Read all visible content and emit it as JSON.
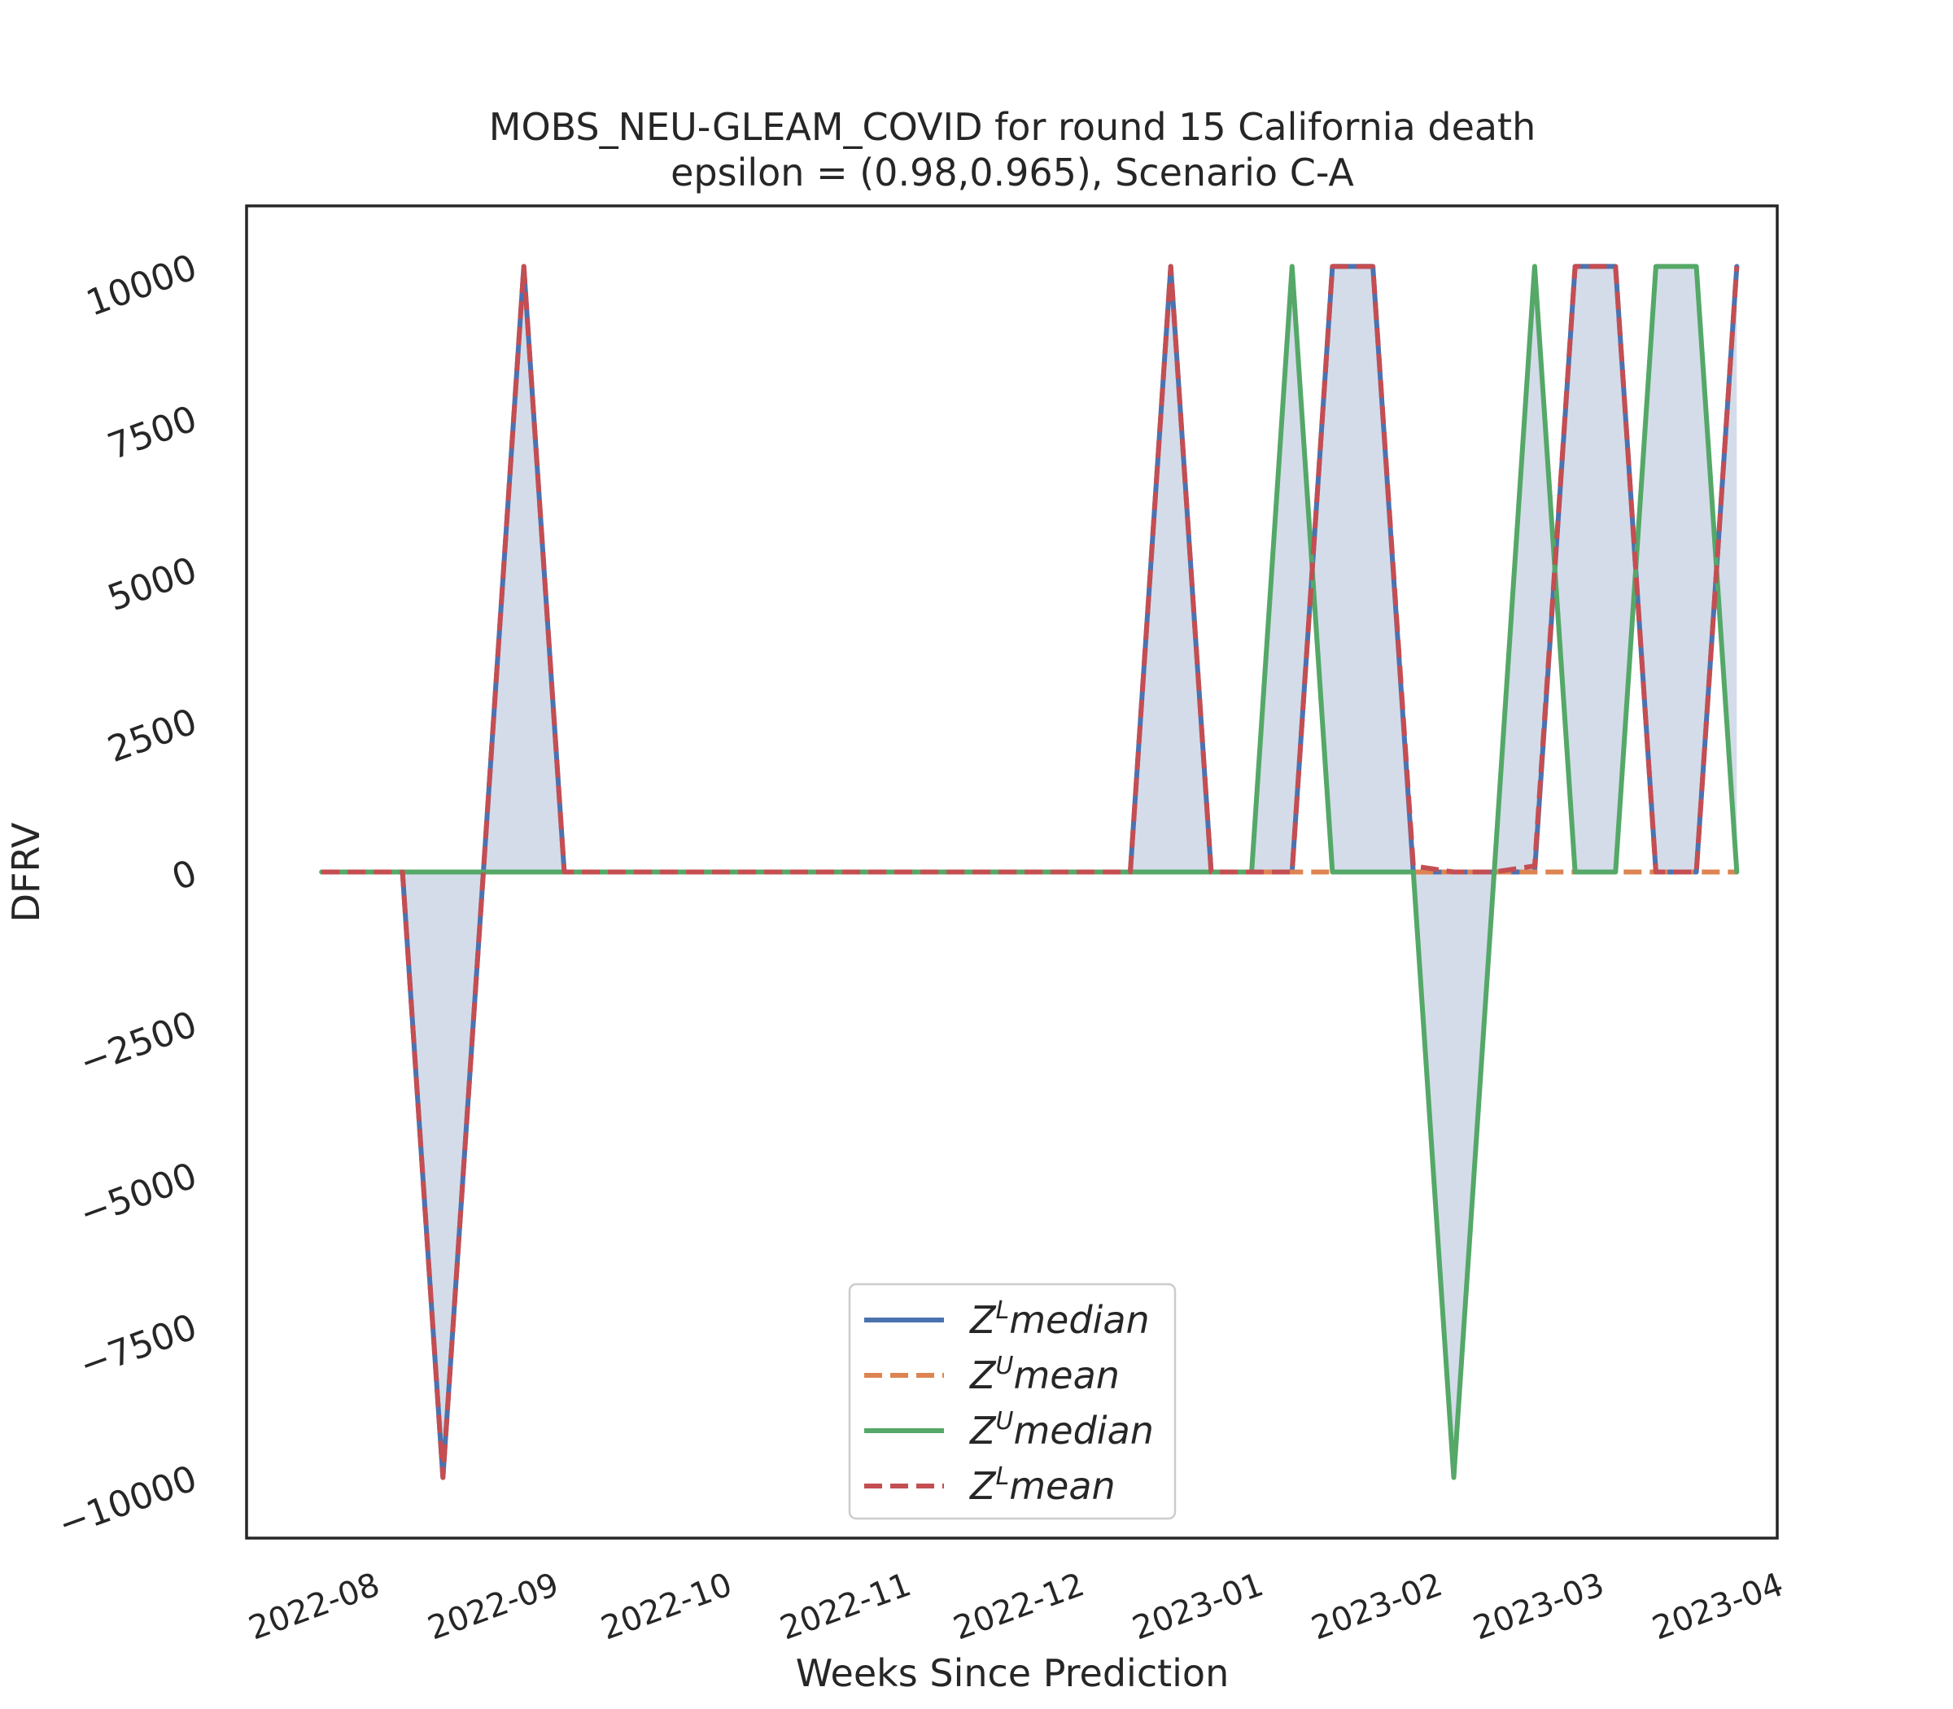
{
  "chart_data": {
    "type": "line",
    "title": "MOBS_NEU-GLEAM_COVID for round 15 California  death",
    "subtitle": "epsilon = (0.98,0.965), Scenario C-A",
    "xlabel": "Weeks Since Prediction",
    "ylabel": "DFRV",
    "ylim": [
      -11000,
      11000
    ],
    "xlim": [
      "2022-07-10",
      "2023-04-01"
    ],
    "x_ticks": [
      "2022-08",
      "2022-09",
      "2022-10",
      "2022-11",
      "2022-12",
      "2023-01",
      "2023-02",
      "2023-03",
      "2023-04"
    ],
    "x_tick_dates": [
      "2022-08-01",
      "2022-09-01",
      "2022-10-01",
      "2022-11-01",
      "2022-12-01",
      "2023-01-01",
      "2023-02-01",
      "2023-03-01",
      "2023-04-01"
    ],
    "y_ticks": [
      -10000,
      -7500,
      -5000,
      -2500,
      0,
      2500,
      5000,
      7500,
      10000
    ],
    "y_tick_labels": [
      "−10000",
      "−7500",
      "−5000",
      "−2500",
      "0",
      "2500",
      "5000",
      "7500",
      "10000"
    ],
    "grid": false,
    "legend_position": "lower-center",
    "fill_between": {
      "between": [
        "Z^L median",
        "Z^U median"
      ],
      "color": "#d4dcea"
    },
    "x": [
      "2022-07-23",
      "2022-07-30",
      "2022-08-06",
      "2022-08-13",
      "2022-08-20",
      "2022-08-27",
      "2022-09-03",
      "2022-09-10",
      "2022-09-17",
      "2022-09-24",
      "2022-10-01",
      "2022-10-08",
      "2022-10-15",
      "2022-10-22",
      "2022-10-29",
      "2022-11-05",
      "2022-11-12",
      "2022-11-19",
      "2022-11-26",
      "2022-12-03",
      "2022-12-10",
      "2022-12-17",
      "2022-12-24",
      "2022-12-31",
      "2023-01-07",
      "2023-01-14",
      "2023-01-21",
      "2023-01-28",
      "2023-02-04",
      "2023-02-11",
      "2023-02-18",
      "2023-02-25",
      "2023-03-04",
      "2023-03-11",
      "2023-03-18",
      "2023-03-25"
    ],
    "series": [
      {
        "name": "Z^L median",
        "legend_base": "Z",
        "legend_sup": "L",
        "legend_rest": "median",
        "color": "#4c72b0",
        "style": "solid",
        "values": [
          0,
          0,
          0,
          -10000,
          0,
          10000,
          0,
          0,
          0,
          0,
          0,
          0,
          0,
          0,
          0,
          0,
          0,
          0,
          0,
          0,
          0,
          10000,
          0,
          0,
          0,
          10000,
          10000,
          0,
          0,
          0,
          0,
          10000,
          10000,
          0,
          0,
          10000
        ]
      },
      {
        "name": "Z^U mean",
        "legend_base": "Z",
        "legend_sup": "U",
        "legend_rest": "mean",
        "color": "#dd8452",
        "style": "dashed",
        "values": [
          0,
          0,
          0,
          0,
          0,
          0,
          0,
          0,
          0,
          0,
          0,
          0,
          0,
          0,
          0,
          0,
          0,
          0,
          0,
          0,
          0,
          0,
          0,
          0,
          0,
          0,
          0,
          0,
          0,
          0,
          0,
          0,
          0,
          0,
          0,
          0
        ]
      },
      {
        "name": "Z^U median",
        "legend_base": "Z",
        "legend_sup": "U",
        "legend_rest": "median",
        "color": "#55a868",
        "style": "solid",
        "values": [
          0,
          0,
          0,
          0,
          0,
          0,
          0,
          0,
          0,
          0,
          0,
          0,
          0,
          0,
          0,
          0,
          0,
          0,
          0,
          0,
          0,
          0,
          0,
          0,
          10000,
          0,
          0,
          0,
          -10000,
          0,
          10000,
          0,
          0,
          10000,
          10000,
          0
        ]
      },
      {
        "name": "Z^L mean",
        "legend_base": "Z",
        "legend_sup": "L",
        "legend_rest": "mean",
        "color": "#c44e52",
        "style": "dashed",
        "values": [
          0,
          0,
          0,
          -10000,
          0,
          10000,
          0,
          0,
          0,
          0,
          0,
          0,
          0,
          0,
          0,
          0,
          0,
          0,
          0,
          0,
          0,
          10000,
          0,
          0,
          0,
          10000,
          10000,
          100,
          0,
          0,
          100,
          10000,
          10000,
          0,
          0,
          10000
        ]
      }
    ]
  }
}
